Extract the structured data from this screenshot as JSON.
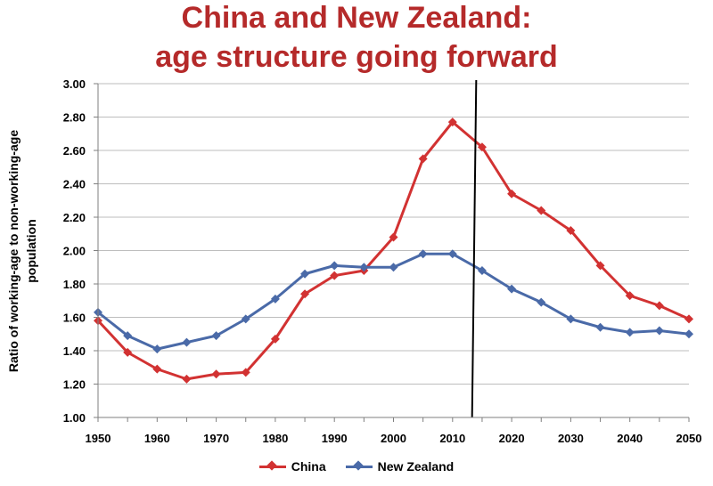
{
  "title_line1": "China and New Zealand:",
  "title_line2": "age structure going forward",
  "colors": {
    "title": "#b52a2a",
    "china": "#d23232",
    "new_zealand": "#4a6aa8",
    "grid": "#bdbdbd",
    "axis": "#7f7f7f",
    "marker_line": "#000000"
  },
  "chart_data": {
    "type": "line",
    "title": "China and New Zealand: age structure going forward",
    "ylabel_line1": "Ratio of working-age to non-working-age",
    "ylabel_line2": "population",
    "xlabel": "",
    "x": [
      1950,
      1955,
      1960,
      1965,
      1970,
      1975,
      1980,
      1985,
      1990,
      1995,
      2000,
      2005,
      2010,
      2015,
      2020,
      2025,
      2030,
      2035,
      2040,
      2045,
      2050
    ],
    "xlim": [
      1950,
      2050
    ],
    "ylim": [
      1.0,
      3.0
    ],
    "x_ticks": [
      "1950",
      "1960",
      "1970",
      "1980",
      "1990",
      "2000",
      "2010",
      "2020",
      "2030",
      "2040",
      "2050"
    ],
    "y_ticks": [
      "1.00",
      "1.20",
      "1.40",
      "1.60",
      "1.80",
      "2.00",
      "2.20",
      "2.40",
      "2.60",
      "2.80",
      "3.00"
    ],
    "grid": "horizontal",
    "legend_position": "bottom",
    "vertical_marker_line": {
      "x_top": 2014,
      "x_bottom": 2013.3
    },
    "series": [
      {
        "name": "China",
        "values": [
          1.58,
          1.39,
          1.29,
          1.23,
          1.26,
          1.27,
          1.47,
          1.74,
          1.85,
          1.88,
          2.08,
          2.55,
          2.77,
          2.62,
          2.34,
          2.24,
          2.12,
          1.91,
          1.73,
          1.67,
          1.59
        ]
      },
      {
        "name": "New Zealand",
        "values": [
          1.63,
          1.49,
          1.41,
          1.45,
          1.49,
          1.59,
          1.71,
          1.86,
          1.91,
          1.9,
          1.9,
          1.98,
          1.98,
          1.88,
          1.77,
          1.69,
          1.59,
          1.54,
          1.51,
          1.52,
          1.5
        ]
      }
    ]
  }
}
